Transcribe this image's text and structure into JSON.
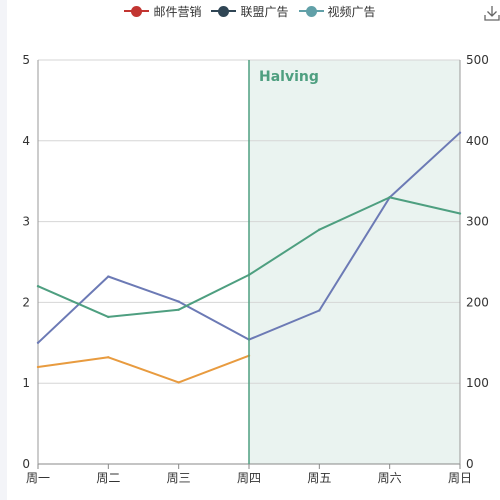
{
  "legend": [
    {
      "name": "邮件营销",
      "color": "#c23531"
    },
    {
      "name": "联盟广告",
      "color": "#2f4554"
    },
    {
      "name": "视频广告",
      "color": "#61a0a8"
    }
  ],
  "toolbar": {
    "download_icon": "download-icon"
  },
  "chart_data": {
    "type": "line",
    "categories": [
      "周一",
      "周二",
      "周三",
      "周四",
      "周五",
      "周六",
      "周日"
    ],
    "y_left": {
      "min": 0,
      "max": 5,
      "ticks": [
        0,
        1,
        2,
        3,
        4,
        5
      ]
    },
    "y_right": {
      "min": 0,
      "max": 500,
      "ticks": [
        0,
        100,
        200,
        300,
        400,
        500
      ]
    },
    "grid": true,
    "series": [
      {
        "color": "#e89b3f",
        "axis": "left",
        "values": [
          1.2,
          1.32,
          1.01,
          1.34,
          null,
          null,
          null
        ]
      },
      {
        "color": "#6c7ab5",
        "axis": "right",
        "values": [
          150,
          232,
          201,
          154,
          190,
          330,
          410
        ]
      },
      {
        "color": "#4e9f80",
        "axis": "right",
        "values": [
          220,
          182,
          191,
          234,
          290,
          330,
          310
        ]
      }
    ],
    "mark_area": {
      "from": "周四",
      "to": "周日",
      "color": "#eaf3f0"
    },
    "mark_line": {
      "at": "周四",
      "label": "Halving",
      "color": "#4e9f80"
    }
  }
}
